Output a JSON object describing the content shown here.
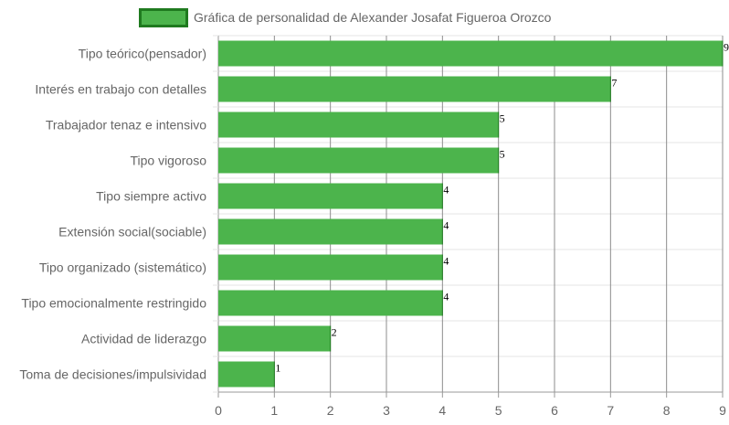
{
  "chart_data": {
    "type": "bar",
    "orientation": "horizontal",
    "title": "",
    "xlabel": "",
    "ylabel": "",
    "categories": [
      "Tipo teórico(pensador)",
      "Interés en trabajo con detalles",
      "Trabajador tenaz e intensivo",
      "Tipo vigoroso",
      "Tipo siempre activo",
      "Extensión social(sociable)",
      "Tipo organizado (sistemático)",
      "Tipo emocionalmente restringido",
      "Actividad de liderazgo",
      "Toma de decisiones/impulsividad"
    ],
    "series": [
      {
        "name": "Gráfica de personalidad de Alexander Josafat Figueroa Orozco",
        "values": [
          9,
          7,
          5,
          5,
          4,
          4,
          4,
          4,
          2,
          1
        ],
        "color": "#4cb44c",
        "border_color": "#1f7a1f"
      }
    ],
    "xlim": [
      0,
      9
    ],
    "x_ticks": [
      "0",
      "1",
      "2",
      "3",
      "4",
      "5",
      "6",
      "7",
      "8",
      "9"
    ],
    "grid": true,
    "legend_position": "top",
    "data_labels": true
  }
}
